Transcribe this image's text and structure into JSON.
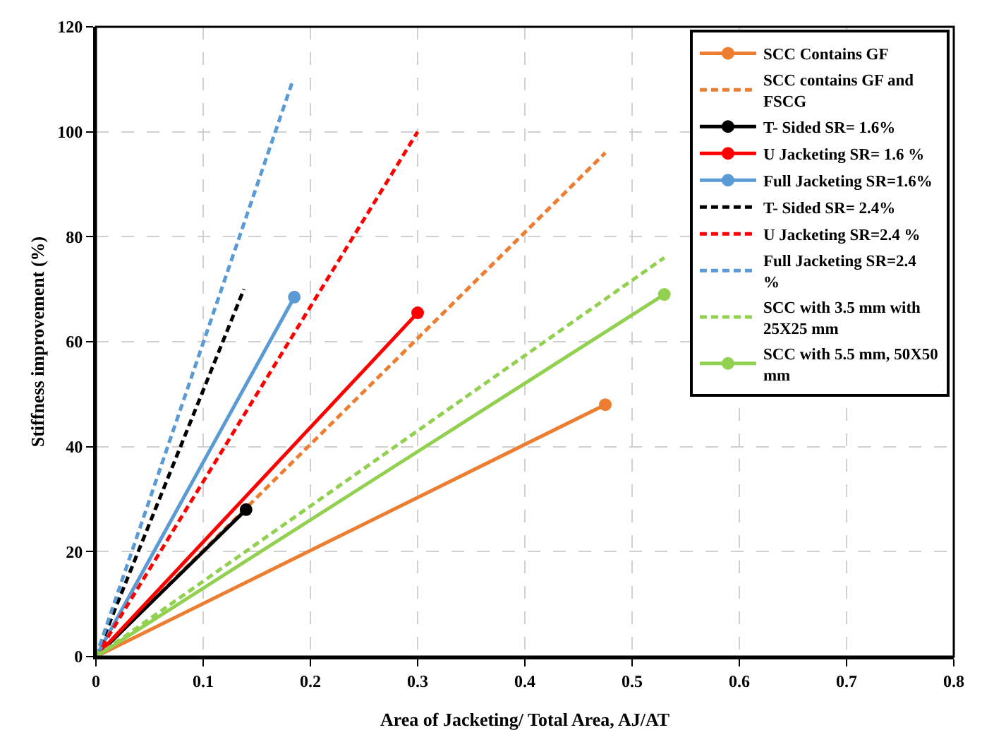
{
  "chart_data": {
    "type": "line",
    "xlabel": "Area of Jacketing/ Total Area, AJ/AT",
    "ylabel": "Stiffness improvement (%)",
    "xlim": [
      0,
      0.8
    ],
    "xticks": [
      0,
      0.1,
      0.2,
      0.3,
      0.4,
      0.5,
      0.6,
      0.7,
      0.8
    ],
    "ylim": [
      0,
      120
    ],
    "yticks": [
      0,
      20,
      40,
      60,
      80,
      100,
      120
    ],
    "grid": true,
    "legend": "top right",
    "series": [
      {
        "name": "SCC Contains GF",
        "color": "#ed7d31",
        "x": [
          0,
          0.475
        ],
        "values": [
          0,
          48
        ],
        "line_style": "solid",
        "marker": "circle"
      },
      {
        "name": "SCC contains GF and FSCG",
        "color": "#ed7d31",
        "x": [
          0,
          0.475
        ],
        "values": [
          0,
          96
        ],
        "line_style": "dashed"
      },
      {
        "name": "T- Sided SR= 1.6%",
        "color": "#000000",
        "x": [
          0,
          0.14
        ],
        "values": [
          0,
          28
        ],
        "line_style": "solid",
        "marker": "circle"
      },
      {
        "name": "U Jacketing SR= 1.6 %",
        "color": "#ff0000",
        "x": [
          0,
          0.3
        ],
        "values": [
          0,
          65.5
        ],
        "line_style": "solid",
        "marker": "circle"
      },
      {
        "name": "Full Jacketing SR=1.6%",
        "color": "#5b9bd5",
        "x": [
          0,
          0.185
        ],
        "values": [
          0,
          68.5
        ],
        "line_style": "solid",
        "marker": "circle"
      },
      {
        "name": "T- Sided SR= 2.4%",
        "color": "#000000",
        "x": [
          0,
          0.138
        ],
        "values": [
          0,
          70
        ],
        "line_style": "dashed"
      },
      {
        "name": "U Jacketing SR=2.4 %",
        "color": "#ff0000",
        "x": [
          0,
          0.3
        ],
        "values": [
          0,
          100
        ],
        "line_style": "dashed"
      },
      {
        "name": "Full Jacketing SR=2.4 %",
        "color": "#5b9bd5",
        "x": [
          0,
          0.184
        ],
        "values": [
          0,
          110
        ],
        "line_style": "dashed"
      },
      {
        "name": "SCC with 3.5 mm with 25X25 mm",
        "color": "#92d050",
        "x": [
          0,
          0.53
        ],
        "values": [
          0,
          76
        ],
        "line_style": "dashed"
      },
      {
        "name": "SCC with 5.5 mm, 50X50 mm",
        "color": "#92d050",
        "x": [
          0,
          0.53
        ],
        "values": [
          0,
          69
        ],
        "line_style": "solid",
        "marker": "circle"
      }
    ]
  }
}
